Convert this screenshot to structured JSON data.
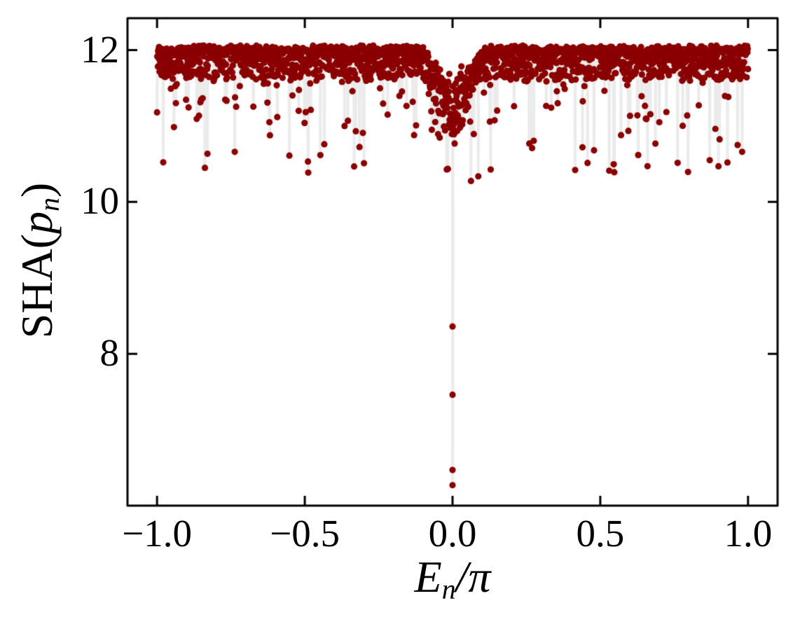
{
  "figure": {
    "background": "#ffffff"
  },
  "chart_data": {
    "type": "scatter",
    "title": "",
    "xlabel": {
      "base": "E",
      "sub": "n",
      "divider": "/",
      "denom": "π"
    },
    "ylabel": {
      "prefix": "SHA(",
      "base": "p",
      "sub": "n",
      "suffix": ")"
    },
    "xlim": [
      -1.1,
      1.1
    ],
    "ylim": [
      6.0,
      12.42
    ],
    "xticks": [
      {
        "v": -1.0,
        "label": "−1.0"
      },
      {
        "v": -0.5,
        "label": "−0.5"
      },
      {
        "v": 0.0,
        "label": "0.0"
      },
      {
        "v": 0.5,
        "label": "0.5"
      },
      {
        "v": 1.0,
        "label": "1.0"
      }
    ],
    "yticks": [
      {
        "v": 8,
        "label": "8"
      },
      {
        "v": 10,
        "label": "10"
      },
      {
        "v": 12,
        "label": "12"
      }
    ],
    "grid": false,
    "legend": null,
    "marker_color": "#8b0000",
    "stem_color": "#ebebeb",
    "axis_color": "#000000",
    "series_model": {
      "n_points": 2100,
      "seed": 7,
      "band_top": 12.02,
      "band_spread": 0.4,
      "band_pow": 2.2,
      "jitter": 0.025,
      "dip_probability": 0.11,
      "dip_scale": 0.42,
      "dip_floor": 10.38,
      "zero_notch_halfwidth": 0.1,
      "zero_notch_depth": [
        0.35,
        1.1
      ],
      "y_max": 12.06
    },
    "low_outliers": [
      [
        -1.0,
        11.18
      ],
      [
        -0.85,
        11.35
      ],
      [
        -0.737,
        10.66
      ],
      [
        -0.62,
        11.05
      ],
      [
        -0.552,
        10.61
      ],
      [
        -0.434,
        10.76
      ],
      [
        -0.365,
        11.0
      ],
      [
        -0.3,
        10.51
      ],
      [
        -0.22,
        11.15
      ],
      [
        -0.13,
        10.88
      ],
      [
        -0.07,
        10.95
      ],
      [
        0.26,
        10.77
      ],
      [
        0.415,
        10.42
      ],
      [
        0.44,
        10.72
      ],
      [
        0.479,
        10.68
      ],
      [
        0.57,
        10.88
      ],
      [
        0.7,
        11.05
      ],
      [
        0.87,
        10.55
      ],
      [
        0.9,
        10.47
      ],
      [
        0.93,
        10.52
      ],
      [
        0.965,
        10.75
      ],
      [
        0.98,
        10.66
      ]
    ],
    "center_stem": {
      "x": 0.0,
      "values": [
        8.36,
        7.46,
        6.47,
        6.27
      ]
    }
  }
}
